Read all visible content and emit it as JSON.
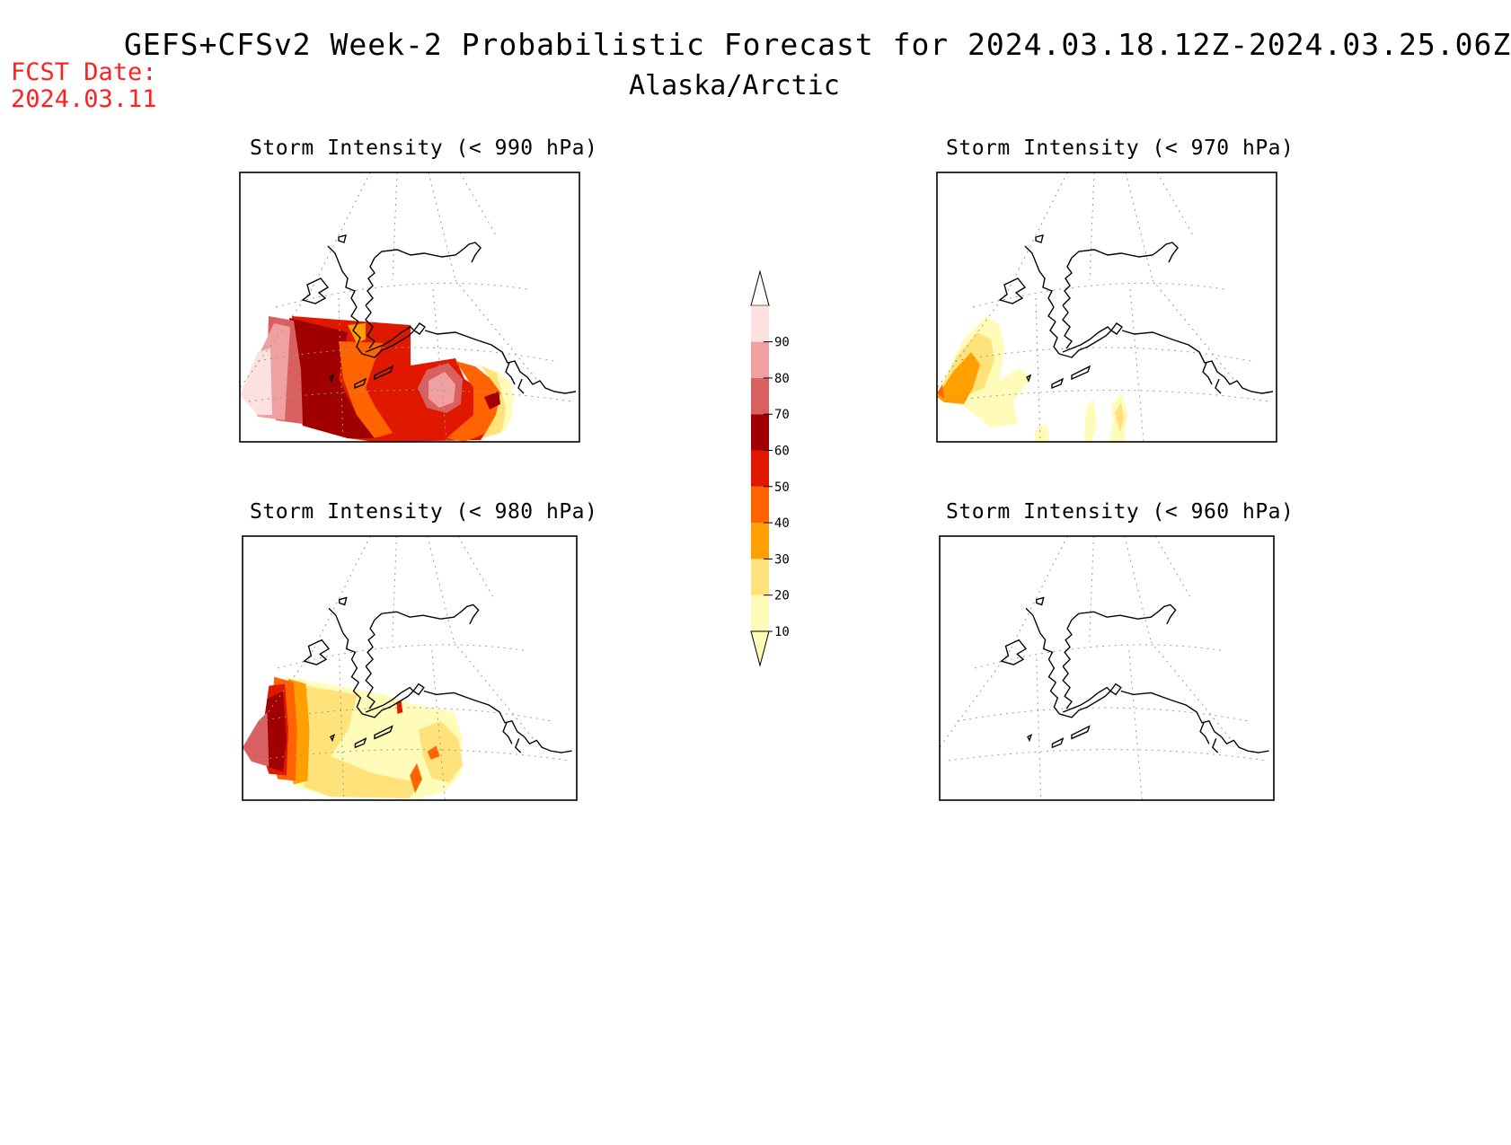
{
  "header": {
    "title": "GEFS+CFSv2 Week-2 Probabilistic Forecast for 2024.03.18.12Z-2024.03.25.06Z",
    "subtitle": "Alaska/Arctic",
    "fcst_label": "FCST Date:",
    "fcst_date": "2024.03.11"
  },
  "panels": [
    {
      "id": "p990",
      "title": "Storm Intensity (< 990 hPa)"
    },
    {
      "id": "p970",
      "title": "Storm Intensity (< 970 hPa)"
    },
    {
      "id": "p980",
      "title": "Storm Intensity (< 980 hPa)"
    },
    {
      "id": "p960",
      "title": "Storm Intensity (< 960 hPa)"
    }
  ],
  "colorbar": {
    "ticks": [
      "10",
      "20",
      "30",
      "40",
      "50",
      "60",
      "70",
      "80",
      "90"
    ],
    "colors": [
      "#fffbb8",
      "#ffe27a",
      "#ffa000",
      "#ff6400",
      "#e01800",
      "#a00000",
      "#d86060",
      "#f0a0a0",
      "#fde0e0"
    ]
  },
  "colors": {
    "title_red": "#ff2020"
  }
}
